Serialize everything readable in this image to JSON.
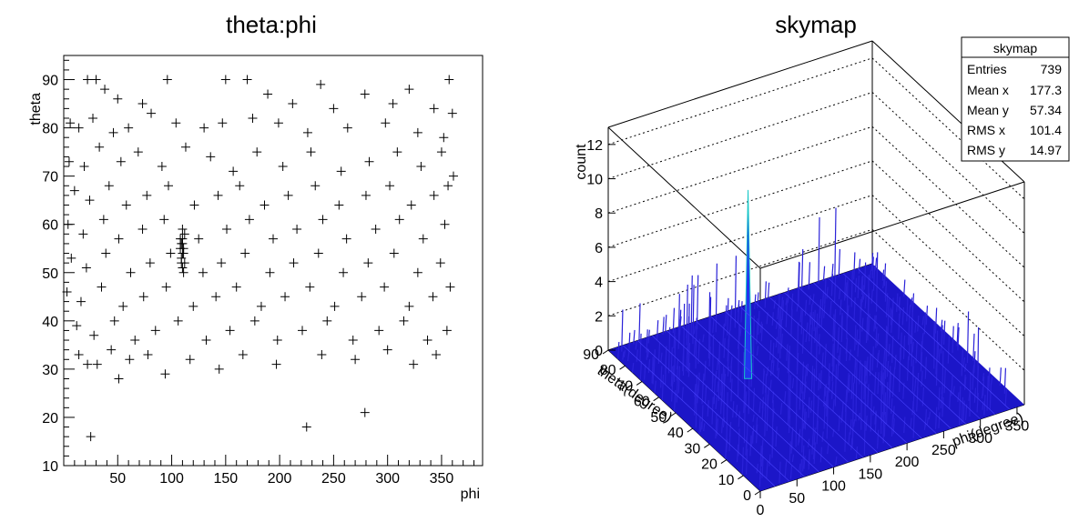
{
  "chart_data": [
    {
      "type": "scatter",
      "title": "theta:phi",
      "xlabel": "phi",
      "ylabel": "theta",
      "xlim": [
        0,
        388
      ],
      "ylim": [
        10,
        95
      ],
      "x_ticks": [
        "50",
        "100",
        "150",
        "200",
        "250",
        "300",
        "350"
      ],
      "y_ticks": [
        "10",
        "20",
        "30",
        "40",
        "50",
        "60",
        "70",
        "80",
        "90"
      ],
      "marker": "cross",
      "points": [
        [
          22,
          90
        ],
        [
          30,
          90
        ],
        [
          96,
          90
        ],
        [
          150,
          90
        ],
        [
          170,
          90
        ],
        [
          238,
          89
        ],
        [
          320,
          88
        ],
        [
          357,
          90
        ],
        [
          189,
          87
        ],
        [
          279,
          87
        ],
        [
          38,
          88
        ],
        [
          50,
          86
        ],
        [
          73,
          85
        ],
        [
          212,
          85
        ],
        [
          250,
          84
        ],
        [
          305,
          85
        ],
        [
          343,
          84
        ],
        [
          360,
          83
        ],
        [
          6,
          81
        ],
        [
          14,
          80
        ],
        [
          27,
          82
        ],
        [
          46,
          79
        ],
        [
          60,
          80
        ],
        [
          81,
          83
        ],
        [
          104,
          81
        ],
        [
          130,
          80
        ],
        [
          147,
          81
        ],
        [
          175,
          82
        ],
        [
          199,
          81
        ],
        [
          226,
          79
        ],
        [
          263,
          80
        ],
        [
          298,
          81
        ],
        [
          328,
          79
        ],
        [
          352,
          78
        ],
        [
          5,
          73
        ],
        [
          19,
          72
        ],
        [
          33,
          76
        ],
        [
          53,
          73
        ],
        [
          69,
          75
        ],
        [
          91,
          72
        ],
        [
          113,
          76
        ],
        [
          136,
          74
        ],
        [
          157,
          71
        ],
        [
          179,
          75
        ],
        [
          203,
          72
        ],
        [
          229,
          75
        ],
        [
          257,
          71
        ],
        [
          283,
          73
        ],
        [
          309,
          75
        ],
        [
          331,
          72
        ],
        [
          350,
          75
        ],
        [
          361,
          70
        ],
        [
          10,
          67
        ],
        [
          24,
          65
        ],
        [
          42,
          68
        ],
        [
          58,
          64
        ],
        [
          77,
          66
        ],
        [
          97,
          68
        ],
        [
          121,
          64
        ],
        [
          143,
          66
        ],
        [
          163,
          68
        ],
        [
          186,
          64
        ],
        [
          208,
          66
        ],
        [
          233,
          68
        ],
        [
          255,
          64
        ],
        [
          280,
          66
        ],
        [
          302,
          68
        ],
        [
          322,
          64
        ],
        [
          343,
          66
        ],
        [
          356,
          68
        ],
        [
          4,
          60
        ],
        [
          18,
          58
        ],
        [
          37,
          61
        ],
        [
          51,
          57
        ],
        [
          73,
          59
        ],
        [
          93,
          61
        ],
        [
          125,
          57
        ],
        [
          151,
          59
        ],
        [
          172,
          61
        ],
        [
          194,
          57
        ],
        [
          216,
          59
        ],
        [
          240,
          61
        ],
        [
          262,
          57
        ],
        [
          289,
          59
        ],
        [
          311,
          61
        ],
        [
          333,
          57
        ],
        [
          353,
          60
        ],
        [
          110,
          57
        ],
        [
          109,
          56
        ],
        [
          111,
          55
        ],
        [
          110,
          54
        ],
        [
          109,
          53
        ],
        [
          112,
          52
        ],
        [
          110,
          51
        ],
        [
          111,
          50
        ],
        [
          108,
          55
        ],
        [
          112,
          58
        ],
        [
          110,
          59
        ],
        [
          109,
          52
        ],
        [
          111,
          54
        ],
        [
          110,
          56
        ],
        [
          108,
          57
        ],
        [
          7,
          53
        ],
        [
          21,
          51
        ],
        [
          39,
          54
        ],
        [
          62,
          50
        ],
        [
          80,
          52
        ],
        [
          99,
          54
        ],
        [
          129,
          50
        ],
        [
          146,
          52
        ],
        [
          168,
          54
        ],
        [
          191,
          50
        ],
        [
          213,
          52
        ],
        [
          236,
          54
        ],
        [
          259,
          50
        ],
        [
          282,
          52
        ],
        [
          306,
          54
        ],
        [
          328,
          50
        ],
        [
          349,
          52
        ],
        [
          3,
          46
        ],
        [
          16,
          44
        ],
        [
          35,
          47
        ],
        [
          55,
          43
        ],
        [
          74,
          45
        ],
        [
          95,
          47
        ],
        [
          120,
          43
        ],
        [
          141,
          45
        ],
        [
          160,
          47
        ],
        [
          183,
          43
        ],
        [
          205,
          45
        ],
        [
          228,
          47
        ],
        [
          251,
          43
        ],
        [
          276,
          45
        ],
        [
          297,
          47
        ],
        [
          320,
          43
        ],
        [
          342,
          45
        ],
        [
          358,
          47
        ],
        [
          12,
          39
        ],
        [
          28,
          37
        ],
        [
          47,
          40
        ],
        [
          66,
          36
        ],
        [
          85,
          38
        ],
        [
          106,
          40
        ],
        [
          132,
          36
        ],
        [
          154,
          38
        ],
        [
          177,
          40
        ],
        [
          198,
          36
        ],
        [
          221,
          38
        ],
        [
          244,
          40
        ],
        [
          268,
          36
        ],
        [
          292,
          38
        ],
        [
          315,
          40
        ],
        [
          337,
          36
        ],
        [
          355,
          38
        ],
        [
          14,
          33
        ],
        [
          31,
          31
        ],
        [
          44,
          34
        ],
        [
          61,
          32
        ],
        [
          78,
          33
        ],
        [
          94,
          29
        ],
        [
          117,
          32
        ],
        [
          144,
          30
        ],
        [
          166,
          33
        ],
        [
          197,
          31
        ],
        [
          239,
          33
        ],
        [
          270,
          32
        ],
        [
          300,
          34
        ],
        [
          324,
          31
        ],
        [
          345,
          33
        ],
        [
          51,
          28
        ],
        [
          22,
          31
        ],
        [
          25,
          16
        ],
        [
          225,
          18
        ],
        [
          279,
          21
        ]
      ]
    },
    {
      "type": "surface",
      "title": "skymap",
      "xlabel": "phi(degree)",
      "ylabel": "theta(degree)",
      "zlabel": "count",
      "x_ticks": [
        "0",
        "50",
        "100",
        "150",
        "200",
        "250",
        "300",
        "350"
      ],
      "y_ticks": [
        "0",
        "10",
        "20",
        "30",
        "40",
        "50",
        "60",
        "70",
        "80",
        "90"
      ],
      "z_ticks": [
        "0",
        "2",
        "4",
        "6",
        "8",
        "10",
        "12"
      ],
      "zlim": [
        0,
        13
      ],
      "peak": {
        "phi": 110,
        "theta": 55,
        "count": 11
      },
      "surface_color": "#1c16c8",
      "stats": {
        "title": "skymap",
        "rows": [
          {
            "label": "Entries",
            "value": "739"
          },
          {
            "label": "Mean x",
            "value": "177.3"
          },
          {
            "label": "Mean y",
            "value": "57.34"
          },
          {
            "label": "RMS x",
            "value": "101.4"
          },
          {
            "label": "RMS y",
            "value": "14.97"
          }
        ]
      }
    }
  ]
}
